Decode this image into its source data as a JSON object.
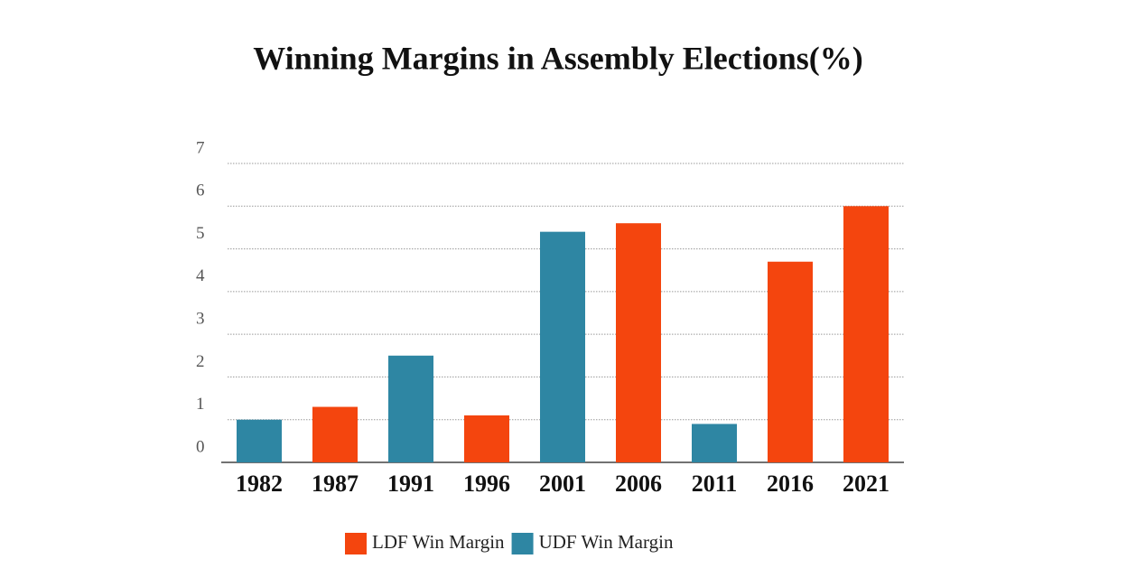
{
  "chart_data": {
    "type": "bar",
    "title": "Winning Margins in Assembly Elections(%)",
    "categories": [
      "1982",
      "1987",
      "1991",
      "1996",
      "2001",
      "2006",
      "2011",
      "2016",
      "2021"
    ],
    "series": [
      {
        "name": "LDF Win Margin",
        "color": "#f4450e",
        "values": [
          null,
          1.3,
          null,
          1.1,
          null,
          5.6,
          null,
          4.7,
          6.0
        ]
      },
      {
        "name": "UDF Win Margin",
        "color": "#2e86a3",
        "values": [
          1.0,
          null,
          2.5,
          null,
          5.4,
          null,
          0.9,
          null,
          null
        ]
      }
    ],
    "ylim": [
      0,
      7
    ],
    "yticks": [
      0,
      1,
      2,
      3,
      4,
      5,
      6,
      7
    ],
    "grid": true
  }
}
